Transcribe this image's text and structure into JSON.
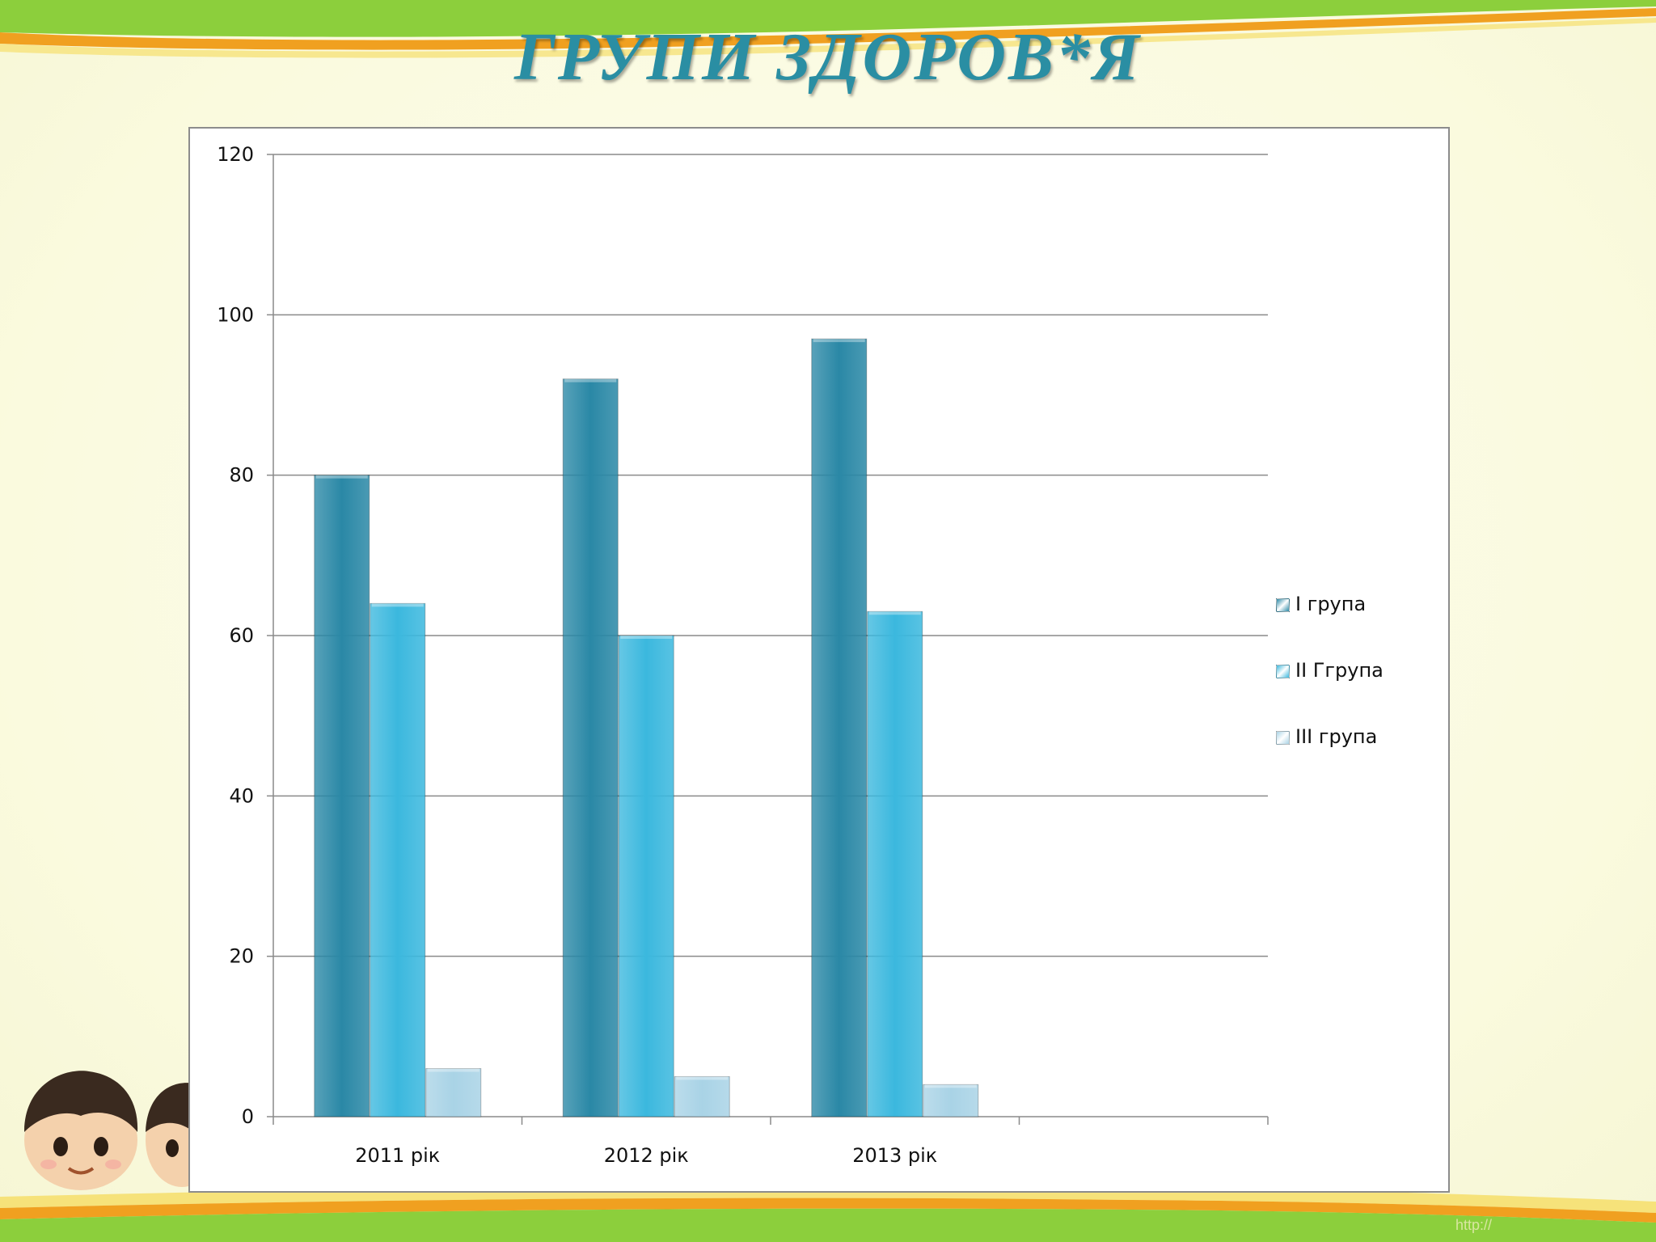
{
  "slide": {
    "title": "ГРУПИ  ЗДОРОВ*Я",
    "colors": {
      "background": "#fbfbe3",
      "band_green": "#8ccf3c",
      "band_orange": "#f0a020",
      "title": "#2a8ea3"
    }
  },
  "chart_data": {
    "type": "bar",
    "categories": [
      "2011 рік",
      "2012 рік",
      "2013 рік",
      ""
    ],
    "series": [
      {
        "name": "І група",
        "values": [
          80,
          92,
          97,
          null
        ],
        "color": "#2a88a6"
      },
      {
        "name": "ІІ Ггрупа",
        "values": [
          64,
          60,
          63,
          null
        ],
        "color": "#3bb8de"
      },
      {
        "name": "ІІІ група",
        "values": [
          6,
          5,
          4,
          null
        ],
        "color": "#a9d3e6"
      }
    ],
    "ylim": [
      0,
      120
    ],
    "yticks": [
      0,
      20,
      40,
      60,
      80,
      100,
      120
    ],
    "xlabel": "",
    "ylabel": "",
    "grid": true,
    "legend_position": "right"
  }
}
